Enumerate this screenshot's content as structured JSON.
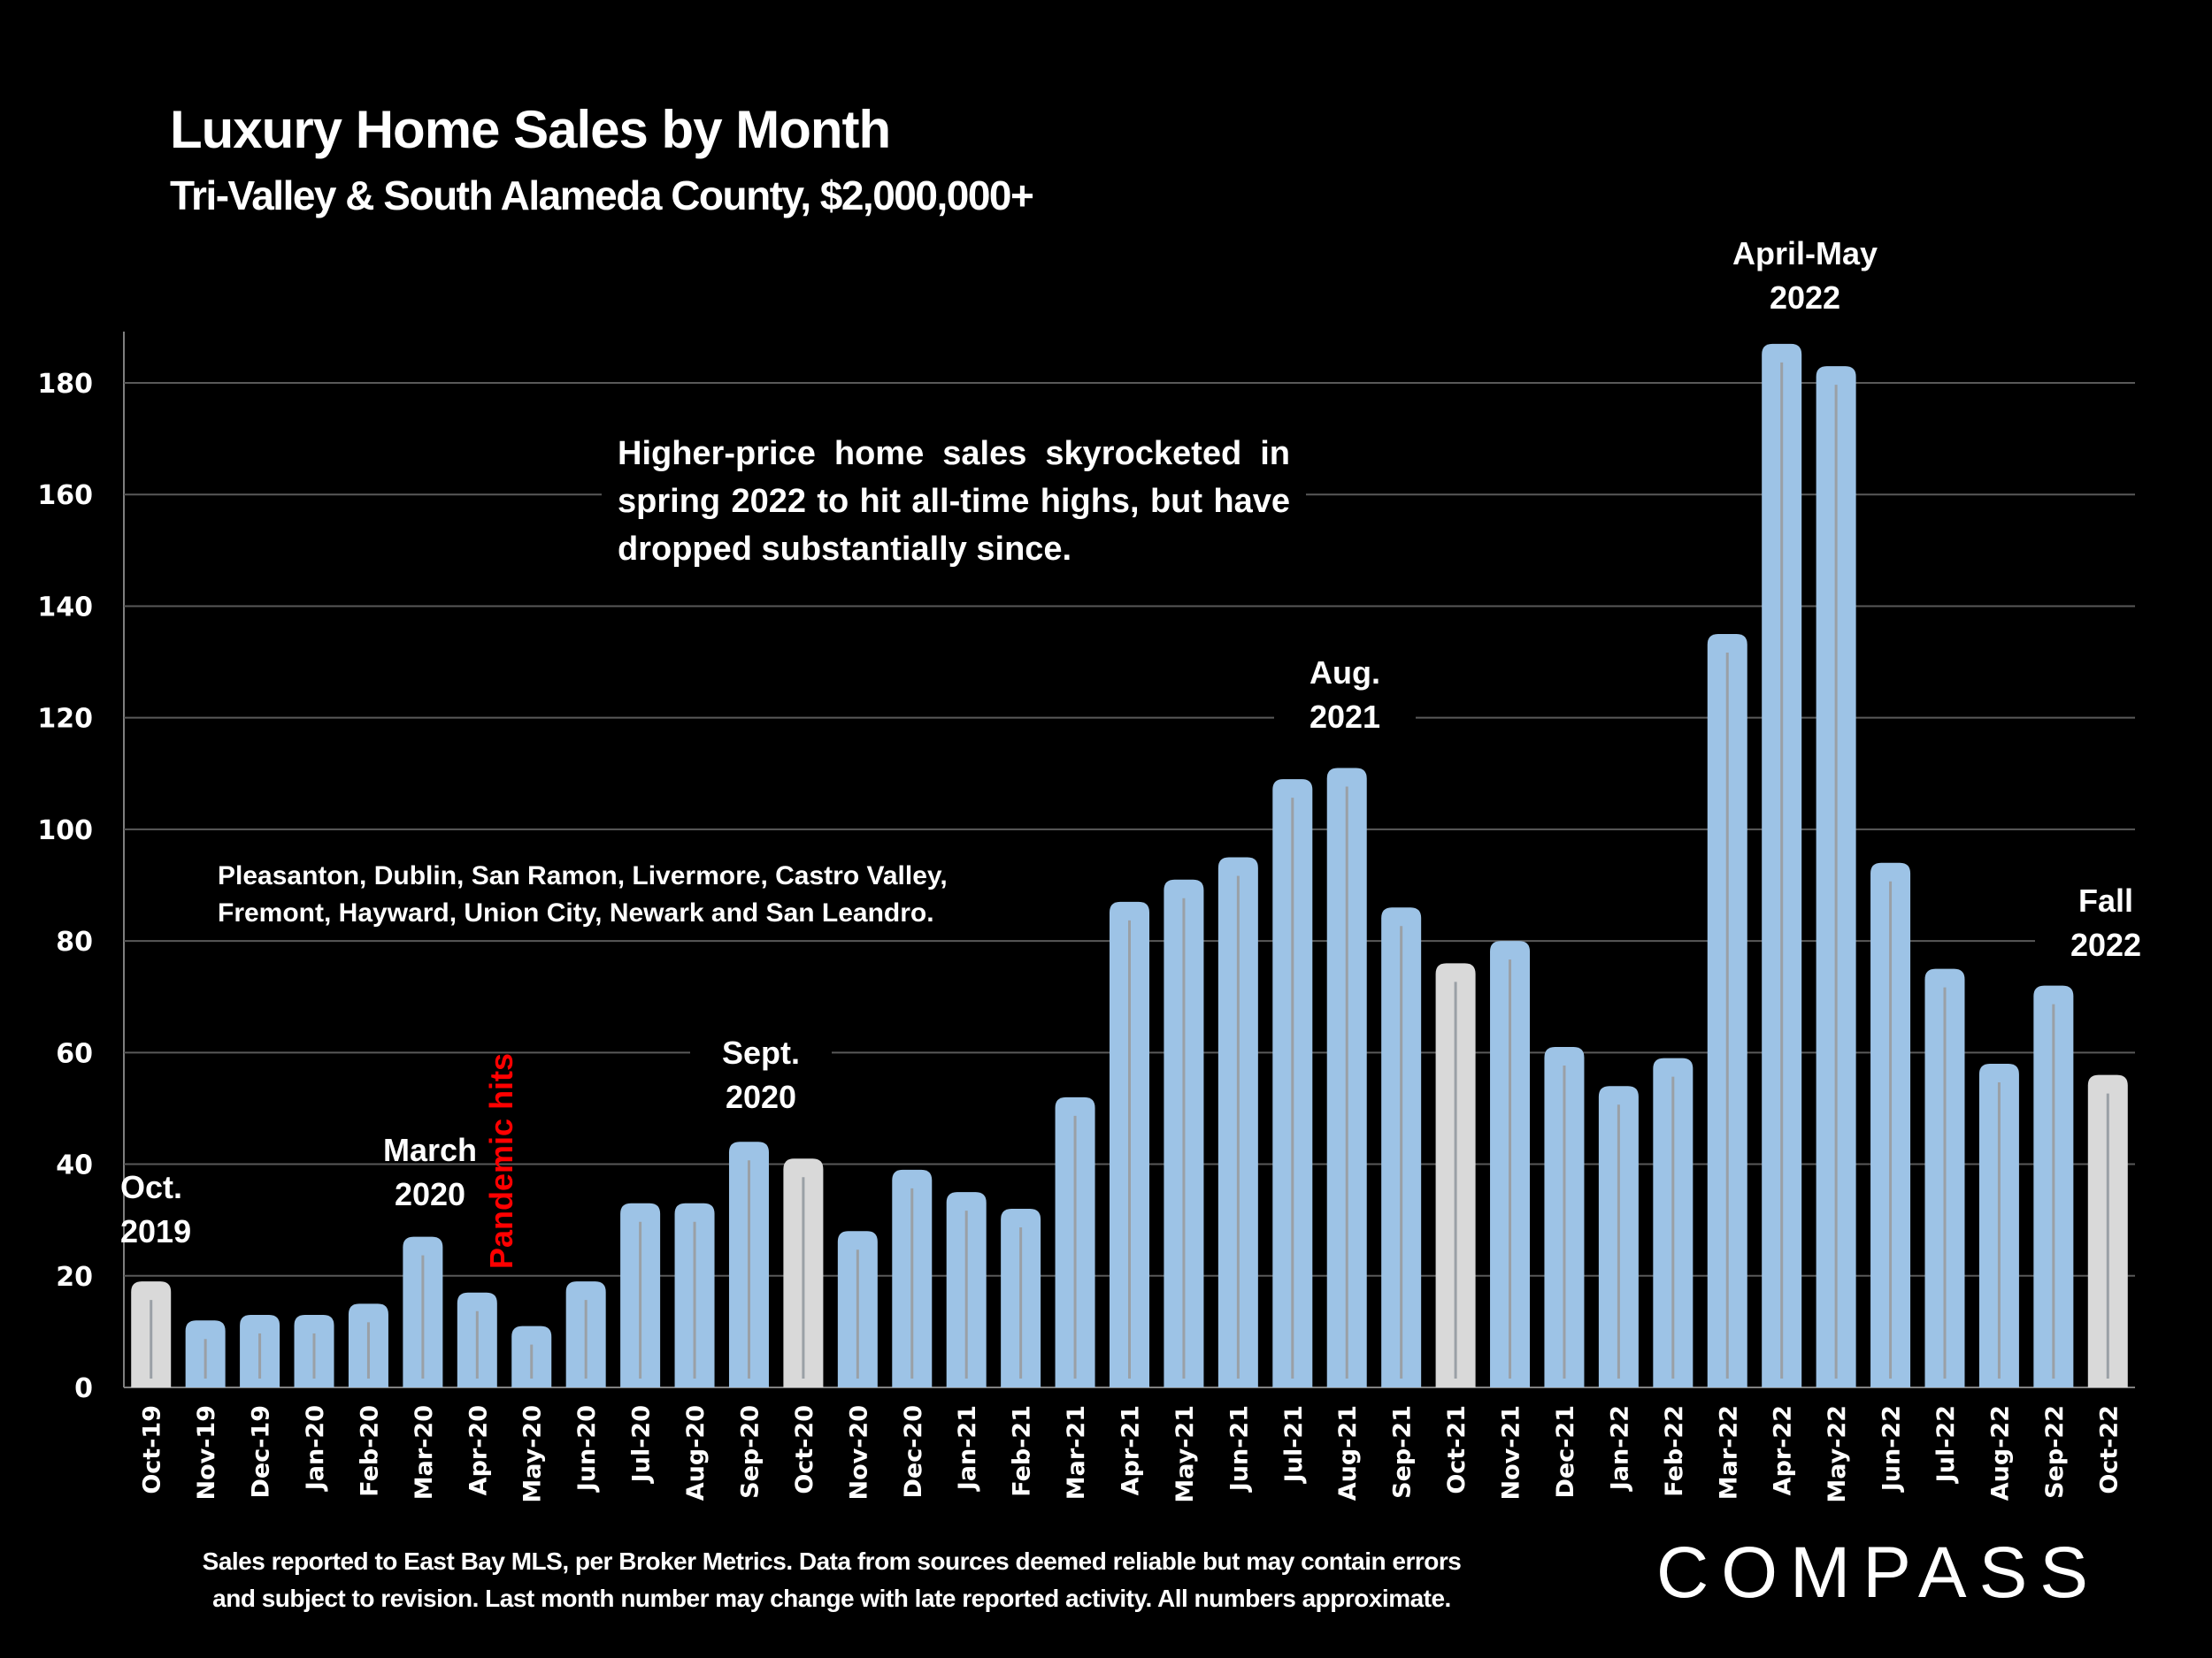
{
  "header": {
    "title": "Luxury Home Sales by Month",
    "subtitle": "Tri-Valley & South Alameda County, $2,000,000+"
  },
  "annotations": {
    "oct_2019": [
      "Oct.",
      "2019"
    ],
    "march_2020": [
      "March",
      "2020"
    ],
    "pandemic": "Pandemic hits",
    "sept_2020": [
      "Sept.",
      "2020"
    ],
    "aug_2021": [
      "Aug.",
      "2021"
    ],
    "april_may_2022": [
      "April-May",
      "2022"
    ],
    "fall_2022": [
      "Fall",
      "2022"
    ],
    "note": "Higher-price home sales skyrocketed in spring 2022 to hit all-time highs, but have dropped substantially since.",
    "cities_line1": "Pleasanton, Dublin, San Ramon, Livermore, Castro Valley,",
    "cities_line2": "Fremont, Hayward, Union City, Newark and San Leandro."
  },
  "footer": {
    "line1": "Sales reported to East Bay MLS, per Broker Metrics. Data from sources deemed reliable but may contain errors",
    "line2": "and subject to revision. Last month number may change with late reported activity. All numbers approximate.",
    "logo": "COMPASS"
  },
  "colors": {
    "background": "#000000",
    "bar": "#9dc3e6",
    "bar_highlight": "#d9d9d9",
    "bar_inner_line": "#9aa0a6",
    "gridline": "#595959",
    "pandemic_text": "#ff0000"
  },
  "chart_data": {
    "type": "bar",
    "title": "Luxury Home Sales by Month",
    "subtitle": "Tri-Valley & South Alameda County, $2,000,000+",
    "xlabel": "",
    "ylabel": "",
    "ylim": [
      0,
      190
    ],
    "yticks": [
      0,
      20,
      40,
      60,
      80,
      100,
      120,
      140,
      160,
      180
    ],
    "grid": true,
    "legend": "none",
    "categories": [
      "Oct-19",
      "Nov-19",
      "Dec-19",
      "Jan-20",
      "Feb-20",
      "Mar-20",
      "Apr-20",
      "May-20",
      "Jun-20",
      "Jul-20",
      "Aug-20",
      "Sep-20",
      "Oct-20",
      "Nov-20",
      "Dec-20",
      "Jan-21",
      "Feb-21",
      "Mar-21",
      "Apr-21",
      "May-21",
      "Jun-21",
      "Jul-21",
      "Aug-21",
      "Sep-21",
      "Oct-21",
      "Nov-21",
      "Dec-21",
      "Jan-22",
      "Feb-22",
      "Mar-22",
      "Apr-22",
      "May-22",
      "Jun-22",
      "Jul-22",
      "Aug-22",
      "Sep-22",
      "Oct-22"
    ],
    "values": [
      19,
      12,
      13,
      13,
      15,
      27,
      17,
      11,
      19,
      33,
      33,
      44,
      41,
      28,
      39,
      35,
      32,
      52,
      87,
      91,
      95,
      109,
      111,
      86,
      76,
      80,
      61,
      54,
      59,
      135,
      187,
      183,
      94,
      75,
      58,
      72,
      56
    ],
    "highlighted": [
      "Oct-19",
      "Oct-20",
      "Oct-21",
      "Oct-22"
    ]
  }
}
